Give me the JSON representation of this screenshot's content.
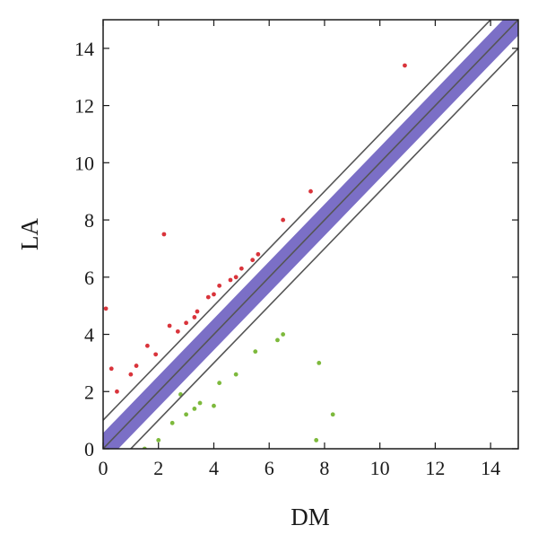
{
  "chart_data": {
    "type": "scatter",
    "xlabel": "DM",
    "ylabel": "LA",
    "xlim": [
      0,
      15
    ],
    "ylim": [
      0,
      15
    ],
    "x_ticks": [
      "0",
      "2",
      "4",
      "6",
      "8",
      "10",
      "12",
      "14"
    ],
    "y_ticks": [
      "0",
      "2",
      "4",
      "6",
      "8",
      "10",
      "12",
      "14"
    ],
    "grid": false,
    "legend": "none",
    "reference_lines": [
      {
        "intercept": 1,
        "slope": 1
      },
      {
        "intercept": 0,
        "slope": 1
      },
      {
        "intercept": -1,
        "slope": 1
      }
    ],
    "colors": {
      "up": "#d9343b",
      "unchanged": "#7b6fc6",
      "down": "#7db93c",
      "reference_line": "#555555",
      "axes": "#1a1a1a"
    },
    "series": [
      {
        "group": "up",
        "x": [
          0.1,
          0.3,
          2.2,
          1.0,
          1.6,
          2.4,
          3.0,
          3.4,
          3.8,
          4.2,
          4.6,
          5.0,
          5.4,
          6.5,
          7.5,
          10.9,
          0.5,
          1.2,
          1.9,
          2.7,
          3.3,
          4.0,
          4.8,
          5.6
        ],
        "y": [
          4.9,
          2.8,
          7.5,
          2.6,
          3.6,
          4.3,
          4.4,
          4.8,
          5.3,
          5.7,
          5.9,
          6.3,
          6.6,
          8.0,
          9.0,
          13.4,
          2.0,
          2.9,
          3.3,
          4.1,
          4.6,
          5.4,
          6.0,
          6.8
        ]
      },
      {
        "group": "down",
        "x": [
          1.5,
          2.0,
          2.5,
          3.0,
          3.5,
          4.2,
          4.8,
          5.5,
          6.3,
          7.8,
          8.3,
          7.7,
          6.5,
          4.0,
          3.3,
          2.8
        ],
        "y": [
          0.0,
          0.3,
          0.9,
          1.2,
          1.6,
          2.3,
          2.6,
          3.4,
          3.8,
          3.0,
          1.2,
          0.3,
          4.0,
          1.5,
          1.4,
          1.9
        ]
      },
      {
        "group": "unchanged",
        "x": [
          0.2,
          0.8,
          1.5,
          2.2,
          3.0,
          3.8,
          4.5,
          5.2,
          6.0,
          6.8,
          7.5,
          8.2,
          9.0,
          9.7,
          10.4,
          11.0,
          11.7,
          12.2,
          12.5,
          12.9
        ],
        "y": [
          0.6,
          1.1,
          1.8,
          2.4,
          3.3,
          3.9,
          4.6,
          5.4,
          6.2,
          6.8,
          7.6,
          8.3,
          8.9,
          9.8,
          10.5,
          11.0,
          11.6,
          12.2,
          12.5,
          13.3
        ]
      }
    ]
  }
}
